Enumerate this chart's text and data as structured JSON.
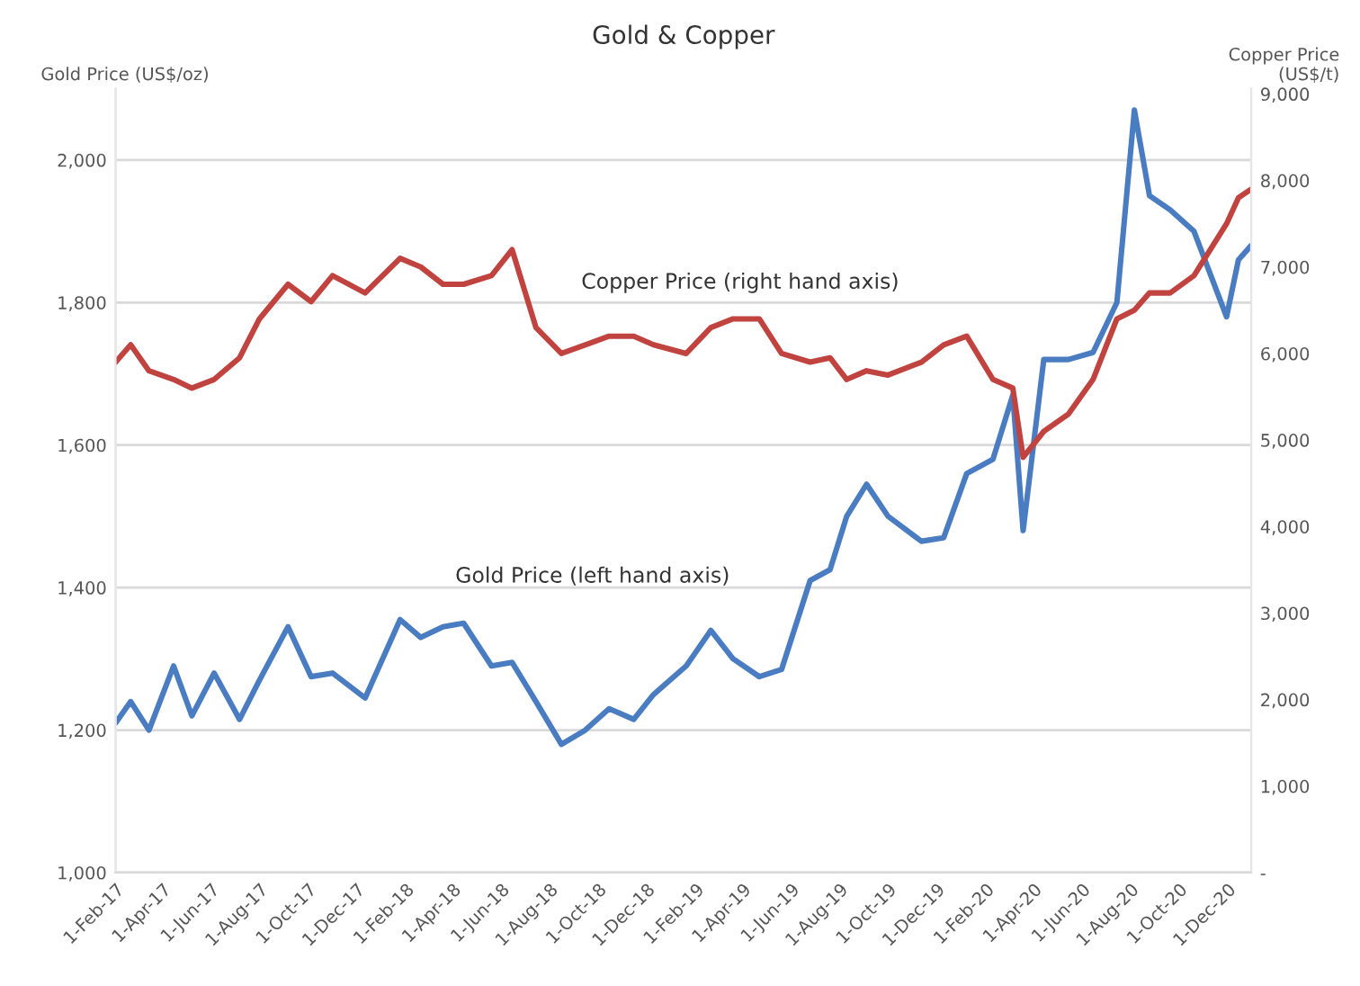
{
  "chart_data": {
    "type": "line",
    "title": "Gold & Copper",
    "ylabel": "Gold Price (US$/oz)",
    "y2label": "Copper Price\n(US$/t)",
    "x": [
      "2017-02-01",
      "2017-02-20",
      "2017-03-15",
      "2017-04-15",
      "2017-05-08",
      "2017-06-05",
      "2017-07-07",
      "2017-08-01",
      "2017-09-06",
      "2017-10-05",
      "2017-11-01",
      "2017-12-12",
      "2018-01-25",
      "2018-02-20",
      "2018-03-20",
      "2018-04-15",
      "2018-05-20",
      "2018-06-15",
      "2018-07-15",
      "2018-08-16",
      "2018-09-15",
      "2018-10-15",
      "2018-11-15",
      "2018-12-10",
      "2019-01-20",
      "2019-02-20",
      "2019-03-20",
      "2019-04-22",
      "2019-05-20",
      "2019-06-25",
      "2019-07-20",
      "2019-08-10",
      "2019-09-04",
      "2019-10-01",
      "2019-11-12",
      "2019-12-10",
      "2020-01-08",
      "2020-02-10",
      "2020-03-06",
      "2020-03-19",
      "2020-04-14",
      "2020-05-15",
      "2020-06-15",
      "2020-07-15",
      "2020-08-06",
      "2020-08-25",
      "2020-09-20",
      "2020-10-20",
      "2020-11-30",
      "2020-12-15",
      "2020-12-31"
    ],
    "series": [
      {
        "name": "Gold Price (left hand axis)",
        "color": "#4a7cc1",
        "values": [
          1210,
          1240,
          1200,
          1290,
          1220,
          1280,
          1215,
          1270,
          1345,
          1275,
          1280,
          1245,
          1355,
          1330,
          1345,
          1350,
          1290,
          1295,
          1240,
          1180,
          1200,
          1230,
          1215,
          1250,
          1290,
          1340,
          1300,
          1275,
          1285,
          1410,
          1425,
          1500,
          1545,
          1500,
          1465,
          1470,
          1560,
          1580,
          1670,
          1480,
          1720,
          1720,
          1730,
          1800,
          2070,
          1950,
          1930,
          1900,
          1780,
          1860,
          1880
        ]
      },
      {
        "name": "Copper Price (right hand axis)",
        "color": "#c0433f",
        "axis": "y2",
        "values": [
          5900,
          6100,
          5800,
          5700,
          5600,
          5700,
          5950,
          6400,
          6800,
          6600,
          6900,
          6700,
          7100,
          7000,
          6800,
          6800,
          6900,
          7200,
          6300,
          6000,
          6100,
          6200,
          6200,
          6100,
          6000,
          6300,
          6400,
          6400,
          6000,
          5900,
          5950,
          5700,
          5800,
          5750,
          5900,
          6100,
          6200,
          5700,
          5600,
          4800,
          5100,
          5300,
          5700,
          6400,
          6500,
          6700,
          6700,
          6900,
          7500,
          7800,
          7900
        ]
      }
    ],
    "xlim": [
      "2017-02-01",
      "2020-12-31"
    ],
    "xticks": [
      {
        "value": "2017-02-01",
        "label": "1-Feb-17"
      },
      {
        "value": "2017-04-01",
        "label": "1-Apr-17"
      },
      {
        "value": "2017-06-01",
        "label": "1-Jun-17"
      },
      {
        "value": "2017-08-01",
        "label": "1-Aug-17"
      },
      {
        "value": "2017-10-01",
        "label": "1-Oct-17"
      },
      {
        "value": "2017-12-01",
        "label": "1-Dec-17"
      },
      {
        "value": "2018-02-01",
        "label": "1-Feb-18"
      },
      {
        "value": "2018-04-01",
        "label": "1-Apr-18"
      },
      {
        "value": "2018-06-01",
        "label": "1-Jun-18"
      },
      {
        "value": "2018-08-01",
        "label": "1-Aug-18"
      },
      {
        "value": "2018-10-01",
        "label": "1-Oct-18"
      },
      {
        "value": "2018-12-01",
        "label": "1-Dec-18"
      },
      {
        "value": "2019-02-01",
        "label": "1-Feb-19"
      },
      {
        "value": "2019-04-01",
        "label": "1-Apr-19"
      },
      {
        "value": "2019-06-01",
        "label": "1-Jun-19"
      },
      {
        "value": "2019-08-01",
        "label": "1-Aug-19"
      },
      {
        "value": "2019-10-01",
        "label": "1-Oct-19"
      },
      {
        "value": "2019-12-01",
        "label": "1-Dec-19"
      },
      {
        "value": "2020-02-01",
        "label": "1-Feb-20"
      },
      {
        "value": "2020-04-01",
        "label": "1-Apr-20"
      },
      {
        "value": "2020-06-01",
        "label": "1-Jun-20"
      },
      {
        "value": "2020-08-01",
        "label": "1-Aug-20"
      },
      {
        "value": "2020-10-01",
        "label": "1-Oct-20"
      },
      {
        "value": "2020-12-01",
        "label": "1-Dec-20"
      }
    ],
    "ylim": [
      1000,
      2100
    ],
    "yticks": [
      {
        "value": 1000,
        "label": "1,000"
      },
      {
        "value": 1200,
        "label": "1,200"
      },
      {
        "value": 1400,
        "label": "1,400"
      },
      {
        "value": 1600,
        "label": "1,600"
      },
      {
        "value": 1800,
        "label": "1,800"
      },
      {
        "value": 2000,
        "label": "2,000"
      }
    ],
    "y2lim": [
      0,
      9060
    ],
    "y2ticks": [
      {
        "value": 0,
        "label": "-"
      },
      {
        "value": 1000,
        "label": "1,000"
      },
      {
        "value": 2000,
        "label": "2,000"
      },
      {
        "value": 3000,
        "label": "3,000"
      },
      {
        "value": 4000,
        "label": "4,000"
      },
      {
        "value": 5000,
        "label": "5,000"
      },
      {
        "value": 6000,
        "label": "6,000"
      },
      {
        "value": 7000,
        "label": "7,000"
      },
      {
        "value": 8000,
        "label": "8,000"
      },
      {
        "value": 9000,
        "label": "9,000"
      }
    ],
    "grid": "y",
    "legend": false,
    "marker": "none",
    "line_style": "solid"
  }
}
